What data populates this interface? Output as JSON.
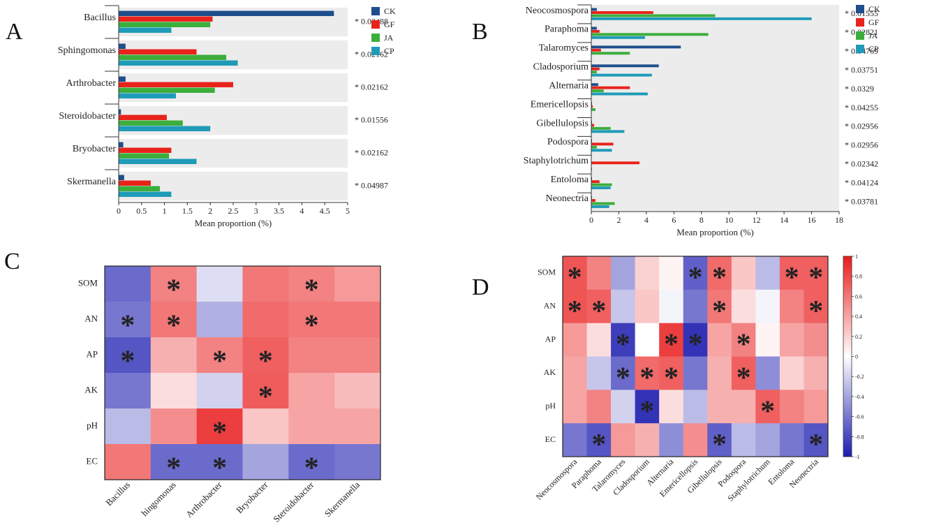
{
  "colors": {
    "CK": "#1f4e8c",
    "GF": "#e8231b",
    "JA": "#3cae3c",
    "CP": "#1f9bb8",
    "band": "#ececec"
  },
  "chart_data": [
    {
      "type": "bar",
      "panel": "A",
      "orientation": "horizontal",
      "categories": [
        "Bacillus",
        "Sphingomonas",
        "Arthrobacter",
        "Steroidobacter",
        "Bryobacter",
        "Skermanella"
      ],
      "series": [
        {
          "name": "CK",
          "values": [
            4.7,
            0.15,
            0.15,
            0.05,
            0.1,
            0.12
          ]
        },
        {
          "name": "GF",
          "values": [
            2.05,
            1.7,
            2.5,
            1.05,
            1.15,
            0.7
          ]
        },
        {
          "name": "JA",
          "values": [
            2.0,
            2.35,
            2.1,
            1.4,
            1.1,
            0.9
          ]
        },
        {
          "name": "CP",
          "values": [
            1.15,
            2.6,
            1.25,
            2.0,
            1.7,
            1.15
          ]
        }
      ],
      "pvalues": [
        "* 0.02488",
        "* 0.02162",
        "* 0.02162",
        "* 0.01556",
        "* 0.02162",
        "* 0.04987"
      ],
      "xticks": [
        "0",
        "0.5",
        "1",
        "1.5",
        "2",
        "2.5",
        "3",
        "3.5",
        "4",
        "4.5",
        "5"
      ],
      "xlim": [
        0,
        5
      ],
      "xlabel": "Mean proportion (%)",
      "legend": [
        "CK",
        "GF",
        "JA",
        "CP"
      ]
    },
    {
      "type": "bar",
      "panel": "B",
      "orientation": "horizontal",
      "categories": [
        "Neocosmospora",
        "Paraphoma",
        "Talaromyces",
        "Cladosporium",
        "Alternaria",
        "Emericellopsis",
        "Gibellulopsis",
        "Podospora",
        "Staphylotrichum",
        "Entoloma",
        "Neonectria"
      ],
      "series": [
        {
          "name": "CK",
          "values": [
            0.4,
            0.4,
            6.5,
            4.9,
            0.5,
            0.05,
            0.05,
            0.05,
            0.0,
            0.05,
            0.05
          ]
        },
        {
          "name": "GF",
          "values": [
            4.5,
            0.6,
            0.7,
            0.6,
            2.8,
            0.1,
            0.2,
            1.6,
            3.5,
            0.6,
            0.3
          ]
        },
        {
          "name": "JA",
          "values": [
            9.0,
            8.5,
            2.8,
            0.4,
            0.9,
            0.3,
            1.4,
            0.4,
            0.0,
            1.5,
            1.7
          ]
        },
        {
          "name": "CP",
          "values": [
            16.0,
            3.9,
            0.0,
            4.4,
            4.1,
            0.0,
            2.4,
            1.5,
            0.05,
            1.4,
            1.3
          ]
        }
      ],
      "pvalues": [
        "* 0.01555",
        "* 0.02821",
        "* 0.04769",
        "* 0.03751",
        "* 0.0329",
        "* 0.04255",
        "* 0.02956",
        "* 0.02956",
        "* 0.02342",
        "* 0.04124",
        "* 0.03781"
      ],
      "xticks": [
        "0",
        "2",
        "4",
        "6",
        "8",
        "10",
        "12",
        "14",
        "16",
        "18"
      ],
      "xlim": [
        0,
        18
      ],
      "xlabel": "Mean proportion (%)",
      "legend": [
        "CK",
        "GF",
        "JA",
        "CP"
      ]
    },
    {
      "type": "heatmap",
      "panel": "C",
      "rows": [
        "SOM",
        "AN",
        "AP",
        "AK",
        "pH",
        "EC"
      ],
      "columns": [
        "Bacillus",
        "Sphingomonas",
        "Arthrobacter",
        "Bryobacter",
        "Steroidobacter",
        "Skermanella"
      ],
      "column_labels_shown": [
        "Bacillus",
        "hingomonas",
        "Arthrobacter",
        "Bryobacter",
        "Steroidobacter",
        "Skermanella"
      ],
      "values": [
        [
          -0.65,
          0.55,
          -0.15,
          0.6,
          0.55,
          0.45
        ],
        [
          -0.6,
          0.6,
          -0.35,
          0.65,
          0.6,
          0.6
        ],
        [
          -0.75,
          0.35,
          0.55,
          0.7,
          0.55,
          0.55
        ],
        [
          -0.6,
          0.15,
          -0.2,
          0.72,
          0.4,
          0.3
        ],
        [
          -0.3,
          0.5,
          0.85,
          0.25,
          0.4,
          0.4
        ],
        [
          0.6,
          -0.65,
          -0.65,
          -0.4,
          -0.65,
          -0.6
        ]
      ],
      "stars": [
        [
          "",
          "black",
          "",
          "",
          "white",
          ""
        ],
        [
          "white",
          "white",
          "",
          "",
          "white",
          ""
        ],
        [
          "white",
          "",
          "black",
          "white",
          "",
          ""
        ],
        [
          "",
          "",
          "",
          "black",
          "",
          ""
        ],
        [
          "",
          "",
          "white",
          "",
          "",
          ""
        ],
        [
          "",
          "white",
          "white",
          "",
          "white",
          ""
        ]
      ],
      "star_symbol": "*"
    },
    {
      "type": "heatmap",
      "panel": "D",
      "rows": [
        "SOM",
        "AN",
        "AP",
        "AK",
        "pH",
        "EC"
      ],
      "columns": [
        "Neocosmospora",
        "Paraphoma",
        "Talaromyces",
        "Cladosporium",
        "Alternaria",
        "Emericellopsis",
        "Gibellulopsis",
        "Podospora",
        "Staphylotrichum",
        "Entoloma",
        "Neonectria"
      ],
      "values": [
        [
          0.75,
          0.55,
          -0.4,
          0.2,
          0.05,
          -0.7,
          0.65,
          0.25,
          -0.3,
          0.7,
          0.7
        ],
        [
          0.75,
          0.7,
          -0.25,
          0.25,
          -0.05,
          -0.6,
          0.6,
          0.15,
          -0.05,
          0.55,
          0.7
        ],
        [
          0.45,
          0.15,
          -0.85,
          0.0,
          0.85,
          -0.9,
          0.4,
          0.55,
          0.05,
          0.4,
          0.5
        ],
        [
          0.4,
          -0.25,
          -0.65,
          0.65,
          0.7,
          -0.6,
          0.35,
          0.7,
          -0.5,
          0.2,
          0.35
        ],
        [
          0.4,
          0.55,
          -0.2,
          -0.9,
          0.15,
          -0.3,
          0.35,
          0.35,
          0.7,
          0.55,
          0.45
        ],
        [
          -0.6,
          -0.75,
          0.45,
          0.35,
          -0.5,
          0.5,
          -0.7,
          -0.3,
          -0.4,
          -0.6,
          -0.75
        ]
      ],
      "stars": [
        [
          "white",
          "",
          "",
          "",
          "",
          "white",
          "black",
          "",
          "",
          "black",
          "white"
        ],
        [
          "white",
          "black",
          "",
          "",
          "",
          "",
          "white",
          "",
          "",
          "",
          "black"
        ],
        [
          "",
          "",
          "white",
          "",
          "white",
          "white",
          "",
          "white",
          "",
          "",
          ""
        ],
        [
          "",
          "",
          "white",
          "white",
          "black",
          "",
          "",
          "black",
          "",
          "",
          ""
        ],
        [
          "",
          "",
          "",
          "white",
          "",
          "",
          "",
          "",
          "black",
          "",
          ""
        ],
        [
          "",
          "white",
          "",
          "",
          "",
          "",
          "white",
          "",
          "",
          "",
          "white"
        ]
      ],
      "star_symbol": "*",
      "colorbar": {
        "ticks": [
          "1",
          "0.8",
          "0.6",
          "0.4",
          "0.2",
          "0",
          "-0.2",
          "-0.4",
          "-0.6",
          "-0.8",
          "-1"
        ],
        "range": [
          -1,
          1
        ]
      }
    }
  ],
  "panel_letters": {
    "A": "A",
    "B": "B",
    "C": "C",
    "D": "D"
  }
}
